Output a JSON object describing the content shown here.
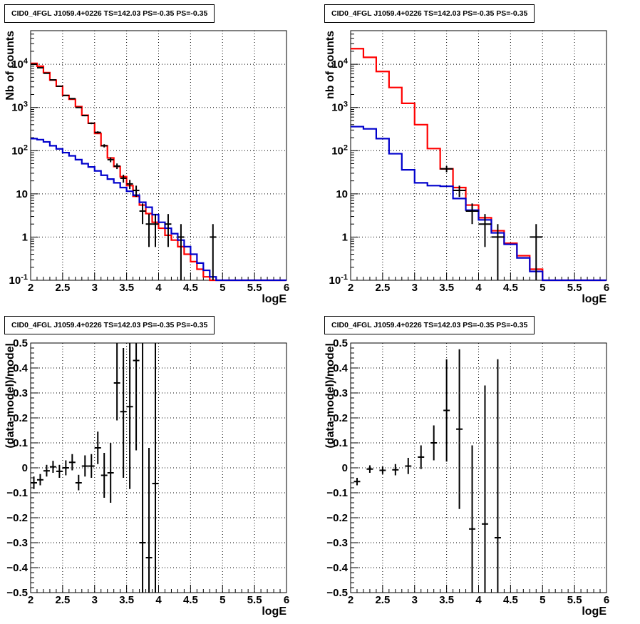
{
  "chart_data": [
    {
      "type": "line",
      "title": "CID0_4FGL J1059.4+0226 TS=142.03 PS=-0.35 PS=-0.35",
      "xlabel": "logE",
      "ylabel": "Nb of counts",
      "xlim": [
        2,
        6
      ],
      "ylim": [
        0.1,
        60000
      ],
      "log_y": true,
      "grid": true,
      "x_ticks": [
        "2",
        "2.5",
        "3",
        "3.5",
        "4",
        "4.5",
        "5",
        "5.5",
        "6"
      ],
      "y_ticks": [
        "10^{-1}",
        "1",
        "10",
        "10^{2}",
        "10^{3}",
        "10^{4}"
      ],
      "bin_edges": [
        2.0,
        2.1,
        2.2,
        2.3,
        2.4,
        2.5,
        2.6,
        2.7,
        2.8,
        2.9,
        3.0,
        3.1,
        3.2,
        3.3,
        3.4,
        3.5,
        3.6,
        3.7,
        3.8,
        3.9,
        4.0,
        4.1,
        4.2,
        4.3,
        4.4,
        4.5,
        4.6,
        4.7,
        4.8,
        4.9,
        5.0,
        5.1,
        5.2,
        5.3,
        5.4,
        5.5,
        5.6,
        5.7,
        5.8,
        5.9,
        6.0
      ],
      "series": [
        {
          "role": "model_total",
          "color": "#ff0000",
          "values": [
            10500,
            9000,
            6400,
            4300,
            3100,
            1900,
            1550,
            1050,
            660,
            430,
            250,
            130,
            68,
            43,
            25,
            15.5,
            8.8,
            5.5,
            3.5,
            2.2,
            1.6,
            1.1,
            0.85,
            0.6,
            0.4,
            0.27,
            0.18,
            0.12,
            0.1,
            0.1,
            0.1,
            0.1,
            0.1,
            0.1,
            0.1,
            0.1,
            0.1,
            0.1,
            0.1,
            0.1
          ]
        },
        {
          "role": "model_component",
          "color": "#0000cc",
          "values": [
            190,
            180,
            160,
            130,
            110,
            90,
            76,
            62,
            50,
            42,
            34,
            27,
            22,
            18,
            14,
            11.5,
            9.3,
            6.4,
            4.9,
            3.3,
            2.2,
            1.6,
            1.2,
            0.85,
            0.6,
            0.4,
            0.25,
            0.17,
            0.12,
            0.1,
            0.1,
            0.1,
            0.1,
            0.1,
            0.1,
            0.1,
            0.1,
            0.1,
            0.1,
            0.1
          ]
        }
      ],
      "points": [
        {
          "x": 2.05,
          "y": 10000,
          "lo": 9800,
          "hi": 10200
        },
        {
          "x": 2.15,
          "y": 8300,
          "lo": 8150,
          "hi": 8450
        },
        {
          "x": 2.25,
          "y": 6200,
          "lo": 6050,
          "hi": 6350
        },
        {
          "x": 2.35,
          "y": 4350,
          "lo": 4250,
          "hi": 4450
        },
        {
          "x": 2.45,
          "y": 3100,
          "lo": 3000,
          "hi": 3200
        },
        {
          "x": 2.55,
          "y": 1900,
          "lo": 1850,
          "hi": 1950
        },
        {
          "x": 2.65,
          "y": 1600,
          "lo": 1550,
          "hi": 1650
        },
        {
          "x": 2.75,
          "y": 1000,
          "lo": 970,
          "hi": 1030
        },
        {
          "x": 2.85,
          "y": 650,
          "lo": 625,
          "hi": 675
        },
        {
          "x": 2.95,
          "y": 430,
          "lo": 410,
          "hi": 450
        },
        {
          "x": 3.05,
          "y": 265,
          "lo": 250,
          "hi": 281
        },
        {
          "x": 3.15,
          "y": 130,
          "lo": 119,
          "hi": 141
        },
        {
          "x": 3.25,
          "y": 62,
          "lo": 54,
          "hi": 70
        },
        {
          "x": 3.35,
          "y": 44,
          "lo": 37.5,
          "hi": 50.5
        },
        {
          "x": 3.45,
          "y": 23,
          "lo": 18.2,
          "hi": 27.8
        },
        {
          "x": 3.55,
          "y": 17,
          "lo": 12.9,
          "hi": 21.1
        },
        {
          "x": 3.65,
          "y": 12,
          "lo": 8.5,
          "hi": 15.5
        },
        {
          "x": 3.75,
          "y": 4,
          "lo": 2,
          "hi": 6
        },
        {
          "x": 3.85,
          "y": 2,
          "lo": 0.59,
          "hi": 3.41
        },
        {
          "x": 3.95,
          "y": 2,
          "lo": 0.59,
          "hi": 3.41
        },
        {
          "x": 4.15,
          "y": 2,
          "lo": 0.59,
          "hi": 3.41
        },
        {
          "x": 4.35,
          "y": 1,
          "lo": 0.1,
          "hi": 2
        },
        {
          "x": 4.85,
          "y": 1,
          "lo": 0.1,
          "hi": 2
        }
      ]
    },
    {
      "type": "line",
      "title": "CID0_4FGL J1059.4+0226 TS=142.03 PS=-0.35 PS=-0.35",
      "xlabel": "logE",
      "ylabel": "nb of counts",
      "xlim": [
        2,
        6
      ],
      "ylim": [
        0.1,
        60000
      ],
      "log_y": true,
      "grid": true,
      "x_ticks": [
        "2",
        "2.5",
        "3",
        "3.5",
        "4",
        "4.5",
        "5",
        "5.5",
        "6"
      ],
      "y_ticks": [
        "10^{-1}",
        "1",
        "10",
        "10^{2}",
        "10^{3}",
        "10^{4}"
      ],
      "bin_edges": [
        2.0,
        2.2,
        2.4,
        2.6,
        2.8,
        3.0,
        3.2,
        3.4,
        3.6,
        3.8,
        4.0,
        4.2,
        4.4,
        4.6,
        4.8,
        5.0,
        5.2,
        5.4,
        5.6,
        5.8,
        6.0
      ],
      "series": [
        {
          "role": "model_total",
          "color": "#ff0000",
          "values": [
            23000,
            14500,
            6800,
            2900,
            1250,
            400,
            112,
            38,
            14,
            5.5,
            2.8,
            1.4,
            0.72,
            0.37,
            0.18,
            0.1,
            0.1,
            0.1,
            0.1,
            0.1
          ]
        },
        {
          "role": "model_component",
          "color": "#0000cc",
          "values": [
            360,
            320,
            190,
            85,
            36,
            18,
            15.5,
            15,
            7.8,
            4.2,
            2.5,
            1.25,
            0.68,
            0.33,
            0.16,
            0.1,
            0.1,
            0.1,
            0.1,
            0.1
          ]
        }
      ],
      "points": [
        {
          "x": 3.5,
          "y": 38,
          "lo": 31.8,
          "hi": 44.2
        },
        {
          "x": 3.7,
          "y": 12,
          "lo": 8.5,
          "hi": 15.5
        },
        {
          "x": 3.9,
          "y": 4,
          "lo": 2,
          "hi": 6
        },
        {
          "x": 4.1,
          "y": 2,
          "lo": 0.59,
          "hi": 3.41
        },
        {
          "x": 4.3,
          "y": 1,
          "lo": 0.1,
          "hi": 2
        },
        {
          "x": 4.9,
          "y": 1,
          "lo": 0.1,
          "hi": 2
        }
      ]
    },
    {
      "type": "scatter",
      "title": "CID0_4FGL J1059.4+0226 TS=142.03 PS=-0.35 PS=-0.35",
      "xlabel": "logE",
      "ylabel": "(data-model)/model",
      "xlim": [
        2,
        6
      ],
      "ylim": [
        -0.5,
        0.5
      ],
      "grid": true,
      "x_ticks": [
        "2",
        "2.5",
        "3",
        "3.5",
        "4",
        "4.5",
        "5",
        "5.5",
        "6"
      ],
      "y_ticks": [
        "−0.5",
        "−0.4",
        "−0.3",
        "−0.2",
        "−0.1",
        "0",
        "0.1",
        "0.2",
        "0.3",
        "0.4",
        "0.5"
      ],
      "points": [
        {
          "x": 2.05,
          "y": -0.06,
          "lo": -0.085,
          "hi": -0.035
        },
        {
          "x": 2.15,
          "y": -0.048,
          "lo": -0.07,
          "hi": -0.025
        },
        {
          "x": 2.25,
          "y": -0.012,
          "lo": -0.035,
          "hi": 0.012
        },
        {
          "x": 2.35,
          "y": 0.004,
          "lo": -0.02,
          "hi": 0.028
        },
        {
          "x": 2.45,
          "y": -0.014,
          "lo": -0.04,
          "hi": 0.012
        },
        {
          "x": 2.55,
          "y": 0.0,
          "lo": -0.03,
          "hi": 0.03
        },
        {
          "x": 2.65,
          "y": 0.022,
          "lo": -0.01,
          "hi": 0.055
        },
        {
          "x": 2.75,
          "y": -0.06,
          "lo": -0.09,
          "hi": -0.028
        },
        {
          "x": 2.85,
          "y": 0.007,
          "lo": -0.035,
          "hi": 0.05
        },
        {
          "x": 2.95,
          "y": 0.007,
          "lo": -0.04,
          "hi": 0.055
        },
        {
          "x": 3.05,
          "y": 0.08,
          "lo": 0.015,
          "hi": 0.145
        },
        {
          "x": 3.15,
          "y": -0.03,
          "lo": -0.12,
          "hi": 0.06
        },
        {
          "x": 3.25,
          "y": -0.02,
          "lo": -0.14,
          "hi": 0.1
        },
        {
          "x": 3.35,
          "y": 0.34,
          "lo": 0.19,
          "hi": 0.5
        },
        {
          "x": 3.45,
          "y": 0.225,
          "lo": -0.04,
          "hi": 0.48
        },
        {
          "x": 3.55,
          "y": 0.245,
          "lo": -0.085,
          "hi": 0.5
        },
        {
          "x": 3.65,
          "y": 0.43,
          "lo": 0.07,
          "hi": 0.5
        },
        {
          "x": 3.75,
          "y": -0.3,
          "lo": -0.5,
          "hi": 0.5
        },
        {
          "x": 3.85,
          "y": -0.36,
          "lo": -0.5,
          "hi": 0.08
        },
        {
          "x": 3.95,
          "y": -0.063,
          "lo": -0.5,
          "hi": 0.5
        }
      ]
    },
    {
      "type": "scatter",
      "title": "CID0_4FGL J1059.4+0226 TS=142.03 PS=-0.35 PS=-0.35",
      "xlabel": "logE",
      "ylabel": "(data-model)/model",
      "xlim": [
        2,
        6
      ],
      "ylim": [
        -0.5,
        0.5
      ],
      "grid": true,
      "x_ticks": [
        "2",
        "2.5",
        "3",
        "3.5",
        "4",
        "4.5",
        "5",
        "5.5",
        "6"
      ],
      "y_ticks": [
        "−0.5",
        "−0.4",
        "−0.3",
        "−0.2",
        "−0.1",
        "0",
        "0.1",
        "0.2",
        "0.3",
        "0.4",
        "0.5"
      ],
      "points": [
        {
          "x": 2.1,
          "y": -0.055,
          "lo": -0.07,
          "hi": -0.04
        },
        {
          "x": 2.3,
          "y": -0.005,
          "lo": -0.02,
          "hi": 0.01
        },
        {
          "x": 2.5,
          "y": -0.01,
          "lo": -0.025,
          "hi": 0.005
        },
        {
          "x": 2.7,
          "y": -0.008,
          "lo": -0.03,
          "hi": 0.015
        },
        {
          "x": 2.9,
          "y": 0.007,
          "lo": -0.025,
          "hi": 0.04
        },
        {
          "x": 3.1,
          "y": 0.043,
          "lo": -0.005,
          "hi": 0.09
        },
        {
          "x": 3.3,
          "y": 0.1,
          "lo": 0.03,
          "hi": 0.17
        },
        {
          "x": 3.5,
          "y": 0.23,
          "lo": 0.025,
          "hi": 0.435
        },
        {
          "x": 3.7,
          "y": 0.155,
          "lo": -0.165,
          "hi": 0.475
        },
        {
          "x": 3.9,
          "y": -0.245,
          "lo": -0.5,
          "hi": 0.09
        },
        {
          "x": 4.1,
          "y": -0.225,
          "lo": -0.5,
          "hi": 0.33
        },
        {
          "x": 4.3,
          "y": -0.28,
          "lo": -0.5,
          "hi": 0.435
        }
      ]
    }
  ]
}
